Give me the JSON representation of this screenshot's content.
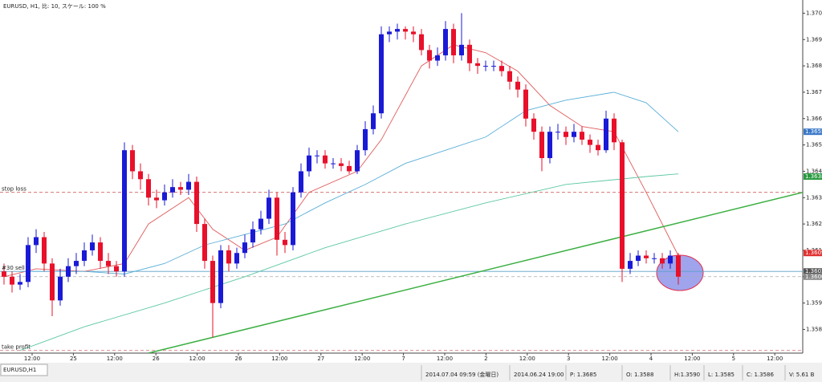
{
  "chart_data": {
    "type": "candlestick",
    "title": "EURUSD, H1, 比: 10, スケール: 100 %",
    "up_color": "#1a1ad6",
    "down_color": "#e8102a",
    "xlim": [
      -0.5,
      99.5
    ],
    "ylim": [
      1.3571,
      1.3705
    ],
    "yticks": [
      {
        "value": 1.358,
        "label": "1.3580"
      },
      {
        "value": 1.359,
        "label": "1.3590"
      },
      {
        "value": 1.36,
        "label": "1.3600"
      },
      {
        "value": 1.361,
        "label": "1.3610"
      },
      {
        "value": 1.362,
        "label": "1.3620"
      },
      {
        "value": 1.363,
        "label": "1.3630"
      },
      {
        "value": 1.364,
        "label": "1.3640"
      },
      {
        "value": 1.365,
        "label": "1.3650"
      },
      {
        "value": 1.366,
        "label": "1.3660"
      },
      {
        "value": 1.367,
        "label": "1.3670"
      },
      {
        "value": 1.368,
        "label": "1.3680"
      },
      {
        "value": 1.369,
        "label": "1.3690"
      },
      {
        "value": 1.37,
        "label": "1.3700"
      }
    ],
    "x_labels": [
      "12:00",
      "25",
      "12:00",
      "26",
      "12:00",
      "26",
      "12:00",
      "27",
      "12:00",
      "7",
      "12:00",
      "2",
      "12:00",
      "3",
      "12:00",
      "4",
      "12:00",
      "5",
      "12:00"
    ],
    "open": [
      1.3602,
      1.36,
      1.3597,
      1.3598,
      1.3612,
      1.3615,
      1.3605,
      1.3591,
      1.36,
      1.3604,
      1.3606,
      1.361,
      1.3613,
      1.3606,
      1.3604,
      1.3602,
      1.3648,
      1.364,
      1.3637,
      1.363,
      1.3629,
      1.3632,
      1.3634,
      1.3633,
      1.3636,
      1.362,
      1.3606,
      1.359,
      1.361,
      1.3605,
      1.3609,
      1.3613,
      1.3618,
      1.3622,
      1.363,
      1.3614,
      1.3612,
      1.3632,
      1.364,
      1.3646,
      1.3646,
      1.3643,
      1.3643,
      1.3642,
      1.364,
      1.3648,
      1.3656,
      1.3662,
      1.3692,
      1.3693,
      1.3694,
      1.3693,
      1.3692,
      1.3686,
      1.3682,
      1.3684,
      1.3694,
      1.3684,
      1.3688,
      1.3681,
      1.368,
      1.368,
      1.368,
      1.3678,
      1.3674,
      1.3671,
      1.366,
      1.3655,
      1.3645,
      1.3655,
      1.3655,
      1.3653,
      1.3655,
      1.3652,
      1.365,
      1.3648,
      1.366,
      1.3651,
      1.3603,
      1.3606,
      1.3608,
      1.3607,
      1.3607,
      1.3605,
      1.3608
    ],
    "high": [
      1.3605,
      1.3602,
      1.3601,
      1.3615,
      1.3618,
      1.3617,
      1.3607,
      1.3603,
      1.3607,
      1.3609,
      1.3613,
      1.3616,
      1.3615,
      1.3609,
      1.3606,
      1.3651,
      1.365,
      1.3643,
      1.3639,
      1.3633,
      1.3635,
      1.3637,
      1.3636,
      1.3639,
      1.3638,
      1.3622,
      1.3608,
      1.3612,
      1.3612,
      1.3611,
      1.3616,
      1.3621,
      1.3625,
      1.3633,
      1.3632,
      1.3617,
      1.3634,
      1.3643,
      1.3649,
      1.3648,
      1.3648,
      1.3645,
      1.3645,
      1.3644,
      1.365,
      1.3659,
      1.3665,
      1.3695,
      1.3695,
      1.3696,
      1.3695,
      1.3695,
      1.3694,
      1.3688,
      1.3687,
      1.3697,
      1.3696,
      1.37,
      1.369,
      1.3683,
      1.3682,
      1.3682,
      1.3682,
      1.368,
      1.3676,
      1.3673,
      1.3662,
      1.3657,
      1.3657,
      1.3658,
      1.3657,
      1.3658,
      1.3657,
      1.3654,
      1.3652,
      1.3663,
      1.3662,
      1.3652,
      1.3609,
      1.361,
      1.361,
      1.3609,
      1.3609,
      1.361,
      1.3609
    ],
    "low": [
      1.3597,
      1.3594,
      1.3595,
      1.3596,
      1.3609,
      1.3602,
      1.3585,
      1.3589,
      1.3598,
      1.3601,
      1.3604,
      1.3608,
      1.3603,
      1.3601,
      1.36,
      1.36,
      1.3637,
      1.3633,
      1.3627,
      1.3626,
      1.3627,
      1.363,
      1.3631,
      1.3631,
      1.3617,
      1.3603,
      1.3577,
      1.3588,
      1.3602,
      1.3603,
      1.3607,
      1.3611,
      1.3616,
      1.362,
      1.3608,
      1.3609,
      1.361,
      1.363,
      1.3638,
      1.3643,
      1.3641,
      1.3641,
      1.364,
      1.3639,
      1.3639,
      1.3646,
      1.3654,
      1.366,
      1.3689,
      1.369,
      1.369,
      1.3689,
      1.3684,
      1.3679,
      1.368,
      1.3682,
      1.3681,
      1.3682,
      1.3678,
      1.3677,
      1.3678,
      1.3678,
      1.3676,
      1.3671,
      1.3668,
      1.3657,
      1.3652,
      1.364,
      1.3643,
      1.3652,
      1.365,
      1.3651,
      1.365,
      1.3647,
      1.3646,
      1.3647,
      1.3648,
      1.3598,
      1.3601,
      1.3604,
      1.3605,
      1.3605,
      1.3603,
      1.3603,
      1.3597
    ],
    "close": [
      1.36,
      1.3597,
      1.3598,
      1.3612,
      1.3615,
      1.3605,
      1.3591,
      1.36,
      1.3604,
      1.3606,
      1.361,
      1.3613,
      1.3606,
      1.3604,
      1.3602,
      1.3648,
      1.364,
      1.3637,
      1.363,
      1.3629,
      1.3632,
      1.3634,
      1.3633,
      1.3636,
      1.362,
      1.3606,
      1.359,
      1.361,
      1.3605,
      1.3609,
      1.3613,
      1.3618,
      1.3622,
      1.363,
      1.3614,
      1.3612,
      1.3632,
      1.364,
      1.3646,
      1.3646,
      1.3643,
      1.3643,
      1.3642,
      1.364,
      1.3648,
      1.3656,
      1.3662,
      1.3692,
      1.3693,
      1.3694,
      1.3693,
      1.3692,
      1.3686,
      1.3682,
      1.3684,
      1.3694,
      1.3684,
      1.3688,
      1.3681,
      1.368,
      1.368,
      1.368,
      1.3678,
      1.3674,
      1.3671,
      1.366,
      1.3655,
      1.3645,
      1.3655,
      1.3655,
      1.3653,
      1.3655,
      1.3652,
      1.365,
      1.3648,
      1.366,
      1.3651,
      1.3603,
      1.3606,
      1.3608,
      1.3607,
      1.3607,
      1.3605,
      1.3608,
      1.36
    ],
    "lines": [
      {
        "color": "#e05a5a",
        "x": [
          0,
          4,
          10,
          15,
          18,
          23,
          26,
          30,
          34,
          38,
          44,
          47,
          52,
          56,
          60,
          64,
          68,
          72,
          76,
          80,
          84
        ],
        "values": [
          1.36,
          1.3603,
          1.3602,
          1.3605,
          1.362,
          1.363,
          1.3618,
          1.361,
          1.3615,
          1.3632,
          1.364,
          1.3652,
          1.368,
          1.3688,
          1.3685,
          1.3678,
          1.3665,
          1.3657,
          1.3655,
          1.3632,
          1.3608
        ]
      },
      {
        "color": "#5aaed8",
        "x": [
          2,
          10,
          15,
          20,
          25,
          30,
          35,
          40,
          45,
          50,
          55,
          60,
          65,
          70,
          76,
          80,
          84
        ],
        "values": [
          1.3602,
          1.3602,
          1.3601,
          1.3605,
          1.3612,
          1.3616,
          1.362,
          1.3628,
          1.3635,
          1.3643,
          1.3648,
          1.3653,
          1.3663,
          1.3667,
          1.367,
          1.3666,
          1.3655
        ]
      },
      {
        "color": "#5cc8a0",
        "x": [
          2,
          10,
          20,
          30,
          40,
          50,
          60,
          70,
          80,
          84
        ],
        "values": [
          1.3572,
          1.3581,
          1.359,
          1.36,
          1.3611,
          1.362,
          1.3628,
          1.3635,
          1.3638,
          1.3639
        ]
      }
    ],
    "trendline": {
      "color": "#3cb043",
      "x": [
        18,
        99.5
      ],
      "values": [
        1.3571,
        1.3632
      ]
    },
    "levels": [
      {
        "label": "stop loss",
        "value": 1.3632,
        "color": "#d06060",
        "dash": true
      },
      {
        "label": "#30 sell",
        "value": 1.3602,
        "color": "#5aa0c8",
        "dash": false
      },
      {
        "value": 1.36,
        "color": "#aaaaaa",
        "dash": true
      },
      {
        "label": "take profit",
        "value": 1.3572,
        "color": "#d06060",
        "dash": true
      }
    ],
    "price_tags": [
      {
        "value": 1.3655,
        "label": "1.3655",
        "color": "#3a78c8"
      },
      {
        "value": 1.3638,
        "label": "1.3638",
        "color": "#2a9a40"
      },
      {
        "value": 1.3609,
        "label": "1.3609",
        "color": "#e03030"
      },
      {
        "value": 1.3602,
        "label": "1.3602",
        "color": "#555555"
      },
      {
        "value": 1.36,
        "label": "1.3600",
        "color": "#888888"
      }
    ]
  },
  "status_bar": {
    "tab": "EURUSD,H1",
    "items": [
      "2014.07.04 09:59 (金曜日)",
      "2014.06.24 19:00",
      "P: 1.3685",
      "O: 1.3588",
      "H:1.3590",
      "L: 1.3585",
      "C: 1.3586",
      "V: 5.61 B"
    ]
  }
}
